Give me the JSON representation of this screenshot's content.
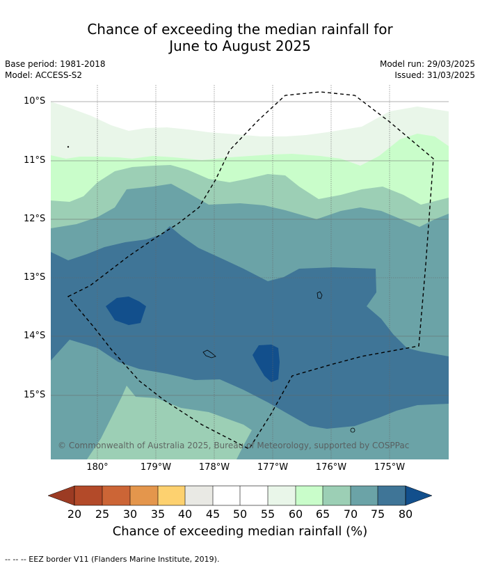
{
  "title": {
    "line1": "Chance of exceeding the median rainfall for",
    "line2": "June to August 2025"
  },
  "meta": {
    "base_period": "Base period: 1981-2018",
    "model": "Model: ACCESS-S2",
    "model_run": "Model run: 29/03/2025",
    "issued": "Issued: 31/03/2025"
  },
  "map": {
    "lat_labels": [
      "10°S",
      "11°S",
      "12°S",
      "13°S",
      "14°S",
      "15°S"
    ],
    "lon_labels": [
      "180°",
      "179°W",
      "178°W",
      "177°W",
      "176°W",
      "175°W"
    ],
    "copyright": "© Commonwealth of Australia 2025, Bureau of Meteorology, supported by COSPPac",
    "border_color": "#000000"
  },
  "colorbar": {
    "title": "Chance of exceeding median rainfall (%)",
    "ticks": [
      "20",
      "25",
      "30",
      "35",
      "40",
      "45",
      "50",
      "55",
      "60",
      "65",
      "70",
      "75",
      "80"
    ],
    "colors": {
      "below_20": "#9c3b23",
      "20_25": "#b34a29",
      "25_30": "#cc6536",
      "30_35": "#e4964c",
      "35_40": "#fdd16f",
      "40_45": "#e9e9e4",
      "45_50": "#ffffff",
      "50_55": "#ffffff",
      "55_60": "#e9f6e9",
      "60_65": "#c9fdca",
      "65_70": "#9ccfb5",
      "70_75": "#6ba3a7",
      "75_80": "#3f7597",
      "above_80": "#124f8c"
    }
  },
  "footer": "--  --  -- EEZ border V11 (Flanders Marine Institute, 2019)."
}
